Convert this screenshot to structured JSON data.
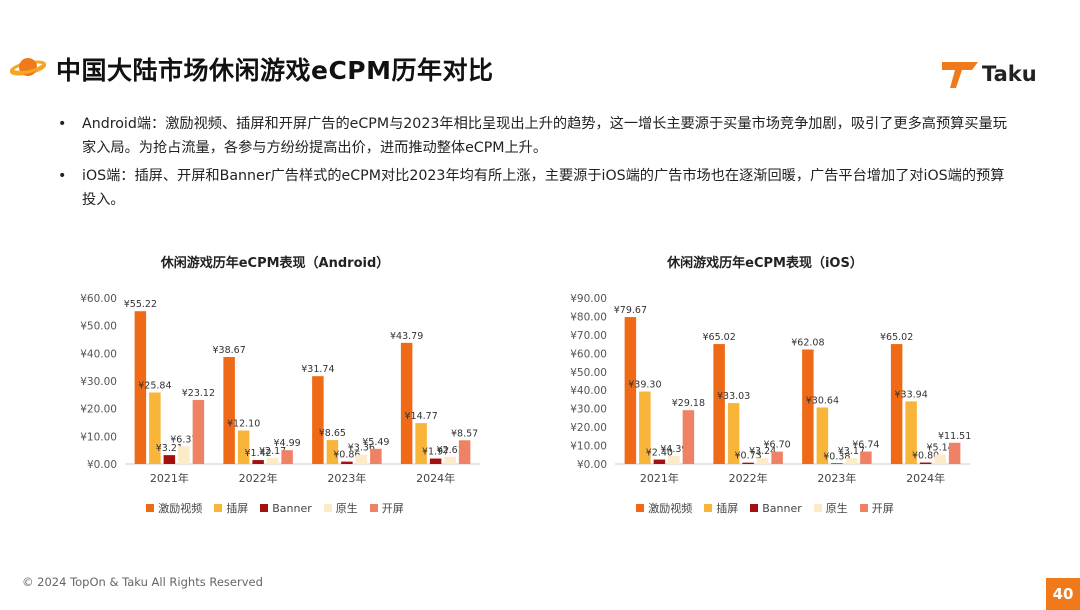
{
  "title": "中国大陆市场休闲游戏eCPM历年对比",
  "logo": {
    "text": "Taku"
  },
  "bullets": [
    "Android端：激励视频、插屏和开屏广告的eCPM与2023年相比呈现出上升的趋势，这一增长主要源于买量市场竞争加剧，吸引了更多高预算买量玩家入局。为抢占流量，各参与方纷纷提高出价，进而推动整体eCPM上升。",
    "iOS端：插屏、开屏和Banner广告样式的eCPM对比2023年均有所上涨，主要源于iOS端的广告市场也在逐渐回暖，广告平台增加了对iOS端的预算投入。"
  ],
  "colors": {
    "accent": "#f07a1a",
    "series": [
      "#ef6a16",
      "#f9b53a",
      "#a4100f",
      "#fdeac6",
      "#ef8164"
    ]
  },
  "footer": "© 2024 TopOn & Taku All Rights Reserved",
  "page_number": "40",
  "chart_data": [
    {
      "type": "bar",
      "title": "休闲游戏历年eCPM表现（Android）",
      "categories": [
        "2021年",
        "2022年",
        "2023年",
        "2024年"
      ],
      "ylim": [
        0,
        60
      ],
      "yticks": [
        "¥60.00",
        "¥50.00",
        "¥40.00",
        "¥30.00",
        "¥20.00",
        "¥10.00",
        "¥0.00"
      ],
      "series": [
        {
          "name": "激励视频",
          "values": [
            55.22,
            38.67,
            31.74,
            43.79
          ],
          "labels": [
            "¥55.22",
            "¥38.67",
            "¥31.74",
            "¥43.79"
          ]
        },
        {
          "name": "插屏",
          "values": [
            25.84,
            12.1,
            8.65,
            14.77
          ],
          "labels": [
            "¥25.84",
            "¥12.10",
            "¥8.65",
            "¥14.77"
          ]
        },
        {
          "name": "Banner",
          "values": [
            3.21,
            1.42,
            0.86,
            1.97
          ],
          "labels": [
            "¥3.21",
            "¥1.42",
            "¥0.86",
            "¥1.97"
          ]
        },
        {
          "name": "原生",
          "values": [
            6.37,
            2.17,
            3.36,
            2.61
          ],
          "labels": [
            "¥6.37",
            "¥2.17",
            "¥3.36",
            "¥2.61"
          ]
        },
        {
          "name": "开屏",
          "values": [
            23.12,
            4.99,
            5.49,
            8.57
          ],
          "labels": [
            "¥23.12",
            "¥4.99",
            "¥5.49",
            "¥8.57"
          ]
        }
      ],
      "legend": "bottom",
      "grid": false
    },
    {
      "type": "bar",
      "title": "休闲游戏历年eCPM表现（iOS）",
      "categories": [
        "2021年",
        "2022年",
        "2023年",
        "2024年"
      ],
      "ylim": [
        0,
        90
      ],
      "yticks": [
        "¥90.00",
        "¥80.00",
        "¥70.00",
        "¥60.00",
        "¥50.00",
        "¥40.00",
        "¥30.00",
        "¥20.00",
        "¥10.00",
        "¥0.00"
      ],
      "series": [
        {
          "name": "激励视频",
          "values": [
            79.67,
            65.02,
            62.08,
            65.02
          ],
          "labels": [
            "¥79.67",
            "¥65.02",
            "¥62.08",
            "¥65.02"
          ]
        },
        {
          "name": "插屏",
          "values": [
            39.3,
            33.03,
            30.64,
            33.94
          ],
          "labels": [
            "¥39.30",
            "¥33.03",
            "¥30.64",
            "¥33.94"
          ]
        },
        {
          "name": "Banner",
          "values": [
            2.4,
            0.73,
            0.38,
            0.8
          ],
          "labels": [
            "¥2.40",
            "¥0.73",
            "¥0.38",
            "¥0.80"
          ]
        },
        {
          "name": "原生",
          "values": [
            4.39,
            3.24,
            3.17,
            5.14
          ],
          "labels": [
            "¥4.39",
            "¥3.24",
            "¥3.17",
            "¥5.14"
          ]
        },
        {
          "name": "开屏",
          "values": [
            29.18,
            6.7,
            6.74,
            11.51
          ],
          "labels": [
            "¥29.18",
            "¥6.70",
            "¥6.74",
            "¥11.51"
          ]
        }
      ],
      "legend": "bottom",
      "grid": false
    }
  ]
}
